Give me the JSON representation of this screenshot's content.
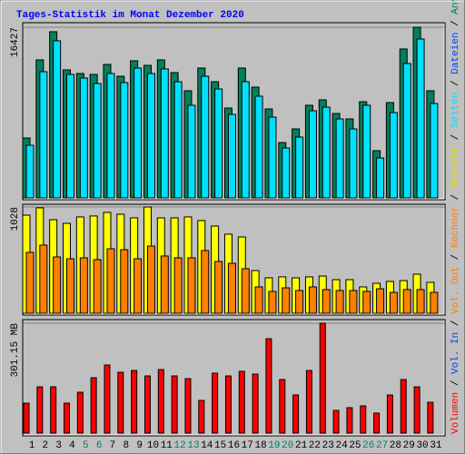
{
  "title": "Tages-Statistik im Monat Dezember 2020",
  "separator": "/",
  "legend": [
    {
      "text": "Volumen",
      "color": "#ff0000"
    },
    {
      "text": "Vol. In",
      "color": "#0040ff"
    },
    {
      "text": "Vol. Out",
      "color": "#ff8000"
    },
    {
      "text": "Rechner",
      "color": "#ff8000"
    },
    {
      "text": "Besuche",
      "color": "#e0e000"
    },
    {
      "text": "Seiten",
      "color": "#00e0ff"
    },
    {
      "text": "Dateien",
      "color": "#0040ff"
    },
    {
      "text": "Anfragen",
      "color": "#00805c"
    }
  ],
  "chart_data": [
    {
      "type": "bar",
      "ylim": [
        0,
        16427
      ],
      "yticks": [
        16427
      ],
      "series": [
        {
          "name": "Anfragen",
          "color": "#00805c",
          "values": [
            5768,
            13285,
            15994,
            12323,
            11974,
            11886,
            12848,
            11712,
            13197,
            12760,
            13285,
            12061,
            10313,
            12498,
            11187,
            8653,
            12498,
            10663,
            8565,
            5331,
            6642,
            8915,
            9439,
            8128,
            7604,
            9264,
            4545,
            9177,
            14334,
            16427,
            10313
          ]
        },
        {
          "name": "Seiten",
          "color": "#00e0ff",
          "values": [
            5069,
            12149,
            15120,
            11886,
            11537,
            11012,
            11974,
            11100,
            12498,
            11974,
            12411,
            11187,
            8915,
            11712,
            10488,
            8041,
            11187,
            9789,
            7779,
            4807,
            5856,
            8390,
            8740,
            7604,
            6642,
            8915,
            3846,
            8216,
            12935,
            15295,
            9090
          ]
        }
      ]
    },
    {
      "type": "bar",
      "ylim": [
        0,
        1028
      ],
      "yticks": [
        1028
      ],
      "series": [
        {
          "name": "Besuche",
          "color": "#ffff00",
          "values": [
            949,
            1020,
            905,
            870,
            932,
            941,
            976,
            958,
            923,
            1028,
            923,
            923,
            932,
            897,
            844,
            765,
            738,
            413,
            343,
            352,
            343,
            352,
            360,
            325,
            325,
            255,
            290,
            308,
            316,
            378,
            299
          ]
        },
        {
          "name": "Rechner",
          "color": "#ff8000",
          "values": [
            589,
            659,
            545,
            527,
            536,
            519,
            624,
            615,
            527,
            650,
            554,
            536,
            536,
            607,
            501,
            483,
            431,
            255,
            211,
            246,
            220,
            255,
            229,
            220,
            220,
            211,
            237,
            202,
            229,
            229,
            202
          ]
        }
      ]
    },
    {
      "type": "bar",
      "ylim": [
        0,
        301.15
      ],
      "yticks": [
        {
          "value": 301.15,
          "label": "301.15 MB"
        }
      ],
      "categories": [
        "1",
        "2",
        "3",
        "4",
        "5",
        "6",
        "7",
        "8",
        "9",
        "10",
        "11",
        "12",
        "13",
        "14",
        "15",
        "16",
        "17",
        "18",
        "19",
        "20",
        "21",
        "22",
        "23",
        "24",
        "25",
        "26",
        "27",
        "28",
        "29",
        "30",
        "31"
      ],
      "label_colors": [
        "#000000",
        "#000000",
        "#000000",
        "#000000",
        "#00805c",
        "#00805c",
        "#000000",
        "#000000",
        "#000000",
        "#000000",
        "#000000",
        "#00805c",
        "#00805c",
        "#000000",
        "#000000",
        "#000000",
        "#000000",
        "#000000",
        "#00805c",
        "#00805c",
        "#000000",
        "#000000",
        "#000000",
        "#000000",
        "#000000",
        "#00805c",
        "#00805c",
        "#000000",
        "#000000",
        "#000000",
        "#000000"
      ],
      "series": [
        {
          "name": "Volumen",
          "color": "#ff0000",
          "values": [
            82.1,
            126.9,
            126.9,
            82.1,
            112,
            151.8,
            186.7,
            166.8,
            171.7,
            156.8,
            174.2,
            156.8,
            149.3,
            89.6,
            164.3,
            156.8,
            169.3,
            161.8,
            258.8,
            146.9,
            104.5,
            171.7,
            301.15,
            62.2,
            69.7,
            74.7,
            54.8,
            104.5,
            146.9,
            126.9,
            84.6
          ]
        }
      ]
    }
  ]
}
